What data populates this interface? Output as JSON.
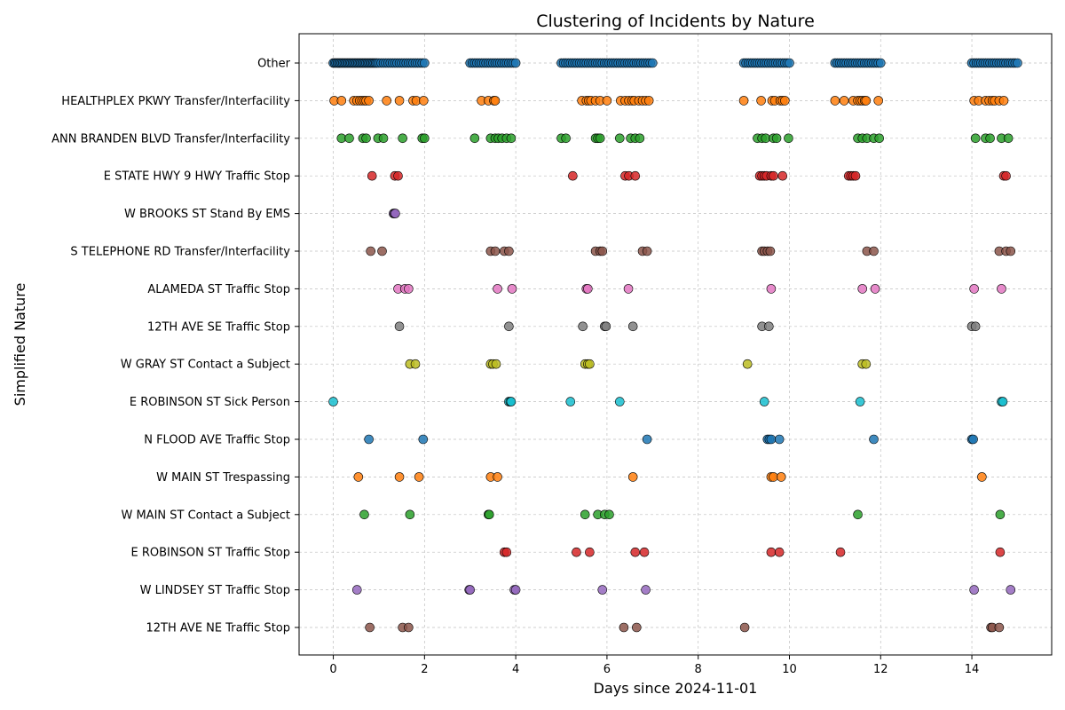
{
  "chart_data": {
    "type": "scatter",
    "title": "Clustering of Incidents by Nature",
    "xlabel": "Days since 2024-11-01",
    "ylabel": "Simplified Nature",
    "xlim": [
      -0.75,
      15.75
    ],
    "xticks": [
      0,
      2,
      4,
      6,
      8,
      10,
      12,
      14
    ],
    "grid": true,
    "categories": [
      "Other",
      "HEALTHPLEX PKWY Transfer/Interfacility",
      "ANN BRANDEN BLVD Transfer/Interfacility",
      "E STATE HWY 9 HWY Traffic Stop",
      "W BROOKS ST Stand By EMS",
      "S TELEPHONE RD Transfer/Interfacility",
      "ALAMEDA ST Traffic Stop",
      "12TH AVE SE Traffic Stop",
      "W GRAY ST Contact a Subject",
      "E ROBINSON ST Sick Person",
      "N FLOOD AVE Traffic Stop",
      "W MAIN ST Trespassing",
      "W MAIN ST Contact a Subject",
      "E ROBINSON ST Traffic Stop",
      "W LINDSEY ST Traffic Stop",
      "12TH AVE NE Traffic Stop"
    ],
    "series": [
      {
        "name": "Other",
        "color": "#1f77b4",
        "x": [
          0.0,
          0.03,
          0.06,
          0.09,
          0.12,
          0.15,
          0.18,
          0.21,
          0.24,
          0.27,
          0.3,
          0.33,
          0.36,
          0.39,
          0.42,
          0.45,
          0.48,
          0.51,
          0.54,
          0.57,
          0.6,
          0.63,
          0.66,
          0.69,
          0.72,
          0.75,
          0.78,
          0.81,
          0.84,
          0.87,
          0.9,
          0.93,
          0.96,
          1.0,
          1.05,
          1.1,
          1.15,
          1.2,
          1.25,
          1.3,
          1.35,
          1.4,
          1.45,
          1.5,
          1.55,
          1.6,
          1.65,
          1.7,
          1.75,
          1.8,
          1.85,
          1.9,
          1.95,
          2.0,
          3.0,
          3.05,
          3.1,
          3.15,
          3.2,
          3.25,
          3.3,
          3.35,
          3.4,
          3.45,
          3.5,
          3.55,
          3.6,
          3.65,
          3.7,
          3.75,
          3.8,
          3.85,
          3.9,
          3.95,
          4.0,
          5.0,
          5.05,
          5.1,
          5.15,
          5.2,
          5.25,
          5.3,
          5.35,
          5.4,
          5.45,
          5.5,
          5.55,
          5.6,
          5.65,
          5.7,
          5.75,
          5.8,
          5.85,
          5.9,
          5.95,
          6.0,
          6.05,
          6.1,
          6.15,
          6.2,
          6.25,
          6.3,
          6.35,
          6.4,
          6.45,
          6.5,
          6.55,
          6.6,
          6.65,
          6.7,
          6.75,
          6.8,
          6.85,
          6.9,
          6.95,
          7.0,
          9.0,
          9.05,
          9.1,
          9.15,
          9.2,
          9.25,
          9.3,
          9.35,
          9.4,
          9.45,
          9.5,
          9.55,
          9.6,
          9.65,
          9.7,
          9.75,
          9.8,
          9.85,
          9.9,
          9.95,
          10.0,
          11.0,
          11.05,
          11.1,
          11.15,
          11.2,
          11.25,
          11.3,
          11.35,
          11.4,
          11.45,
          11.5,
          11.55,
          11.6,
          11.65,
          11.7,
          11.75,
          11.8,
          11.85,
          11.9,
          11.95,
          12.0,
          14.0,
          14.05,
          14.1,
          14.15,
          14.2,
          14.25,
          14.3,
          14.35,
          14.4,
          14.45,
          14.5,
          14.55,
          14.6,
          14.65,
          14.7,
          14.75,
          14.8,
          14.85,
          14.9,
          14.95,
          15.0
        ]
      },
      {
        "name": "HEALTHPLEX PKWY Transfer/Interfacility",
        "color": "#ff7f0e",
        "x": [
          0.02,
          0.18,
          0.45,
          0.52,
          0.58,
          0.63,
          0.68,
          0.72,
          0.78,
          1.17,
          1.45,
          1.75,
          1.82,
          1.98,
          3.25,
          3.4,
          3.52,
          3.55,
          5.45,
          5.55,
          5.6,
          5.65,
          5.75,
          5.85,
          6.0,
          6.3,
          6.4,
          6.48,
          6.55,
          6.6,
          6.7,
          6.78,
          6.85,
          6.92,
          9.0,
          9.38,
          9.62,
          9.68,
          9.8,
          9.85,
          9.9,
          11.0,
          11.2,
          11.4,
          11.5,
          11.55,
          11.6,
          11.65,
          11.68,
          11.95,
          14.05,
          14.15,
          14.3,
          14.38,
          14.45,
          14.5,
          14.6,
          14.7
        ]
      },
      {
        "name": "ANN BRANDEN BLVD Transfer/Interfacility",
        "color": "#2ca02c",
        "x": [
          0.18,
          0.35,
          0.65,
          0.72,
          0.98,
          1.1,
          1.52,
          1.95,
          2.0,
          3.1,
          3.45,
          3.55,
          3.62,
          3.7,
          3.8,
          3.9,
          5.0,
          5.1,
          5.75,
          5.8,
          5.85,
          6.28,
          6.52,
          6.62,
          6.72,
          9.3,
          9.4,
          9.48,
          9.65,
          9.72,
          9.98,
          11.5,
          11.6,
          11.7,
          11.85,
          11.97,
          14.08,
          14.3,
          14.4,
          14.65,
          14.8
        ]
      },
      {
        "name": "E STATE HWY 9 HWY Traffic Stop",
        "color": "#d62728",
        "x": [
          0.85,
          1.35,
          1.42,
          5.25,
          6.4,
          6.48,
          6.62,
          9.35,
          9.4,
          9.45,
          9.5,
          9.6,
          9.65,
          9.85,
          11.3,
          11.35,
          11.4,
          11.45,
          14.7,
          14.75
        ]
      },
      {
        "name": "W BROOKS ST Stand By EMS",
        "color": "#9467bd",
        "x": [
          1.32,
          1.34,
          1.36
        ]
      },
      {
        "name": "S TELEPHONE RD Transfer/Interfacility",
        "color": "#8c564b",
        "x": [
          0.82,
          1.07,
          3.45,
          3.55,
          3.75,
          3.85,
          5.75,
          5.85,
          5.9,
          6.78,
          6.88,
          9.4,
          9.45,
          9.52,
          9.58,
          11.7,
          11.85,
          14.6,
          14.75,
          14.85
        ]
      },
      {
        "name": "ALAMEDA ST Traffic Stop",
        "color": "#e377c2",
        "x": [
          1.42,
          1.57,
          1.65,
          3.6,
          3.92,
          5.55,
          5.58,
          6.47,
          9.6,
          11.6,
          11.88,
          14.05,
          14.65
        ]
      },
      {
        "name": "12TH AVE SE Traffic Stop",
        "color": "#7f7f7f",
        "x": [
          1.45,
          3.85,
          5.47,
          5.95,
          5.98,
          6.57,
          9.4,
          9.55,
          14.0,
          14.08
        ]
      },
      {
        "name": "W GRAY ST Contact a Subject",
        "color": "#bcbd22",
        "x": [
          1.68,
          1.8,
          3.45,
          3.5,
          3.57,
          5.52,
          5.58,
          5.62,
          9.08,
          11.6,
          11.68
        ]
      },
      {
        "name": "E ROBINSON ST Sick Person",
        "color": "#17becf",
        "x": [
          0.0,
          3.85,
          3.88,
          3.9,
          5.2,
          6.28,
          9.45,
          11.55,
          14.65,
          14.68
        ]
      },
      {
        "name": "N FLOOD AVE Traffic Stop",
        "color": "#1f77b4",
        "x": [
          0.78,
          1.97,
          6.88,
          9.52,
          9.56,
          9.6,
          9.78,
          11.85,
          14.0,
          14.03
        ]
      },
      {
        "name": "W MAIN ST Trespassing",
        "color": "#ff7f0e",
        "x": [
          0.55,
          1.45,
          1.88,
          3.45,
          3.6,
          6.57,
          9.6,
          9.65,
          9.82,
          14.22
        ]
      },
      {
        "name": "W MAIN ST Contact a Subject",
        "color": "#2ca02c",
        "x": [
          0.68,
          1.68,
          3.4,
          3.42,
          5.52,
          5.8,
          5.95,
          6.05,
          11.5,
          14.62
        ]
      },
      {
        "name": "E ROBINSON ST Traffic Stop",
        "color": "#d62728",
        "x": [
          3.75,
          3.8,
          5.33,
          5.62,
          6.62,
          6.82,
          9.6,
          9.78,
          11.12,
          14.62
        ]
      },
      {
        "name": "W LINDSEY ST Traffic Stop",
        "color": "#9467bd",
        "x": [
          0.52,
          2.98,
          3.0,
          3.97,
          4.0,
          5.9,
          6.85,
          14.05,
          14.85
        ]
      },
      {
        "name": "12TH AVE NE Traffic Stop",
        "color": "#8c564b",
        "x": [
          0.8,
          1.52,
          1.65,
          6.37,
          6.65,
          9.02,
          14.42,
          14.45,
          14.6
        ]
      }
    ]
  }
}
